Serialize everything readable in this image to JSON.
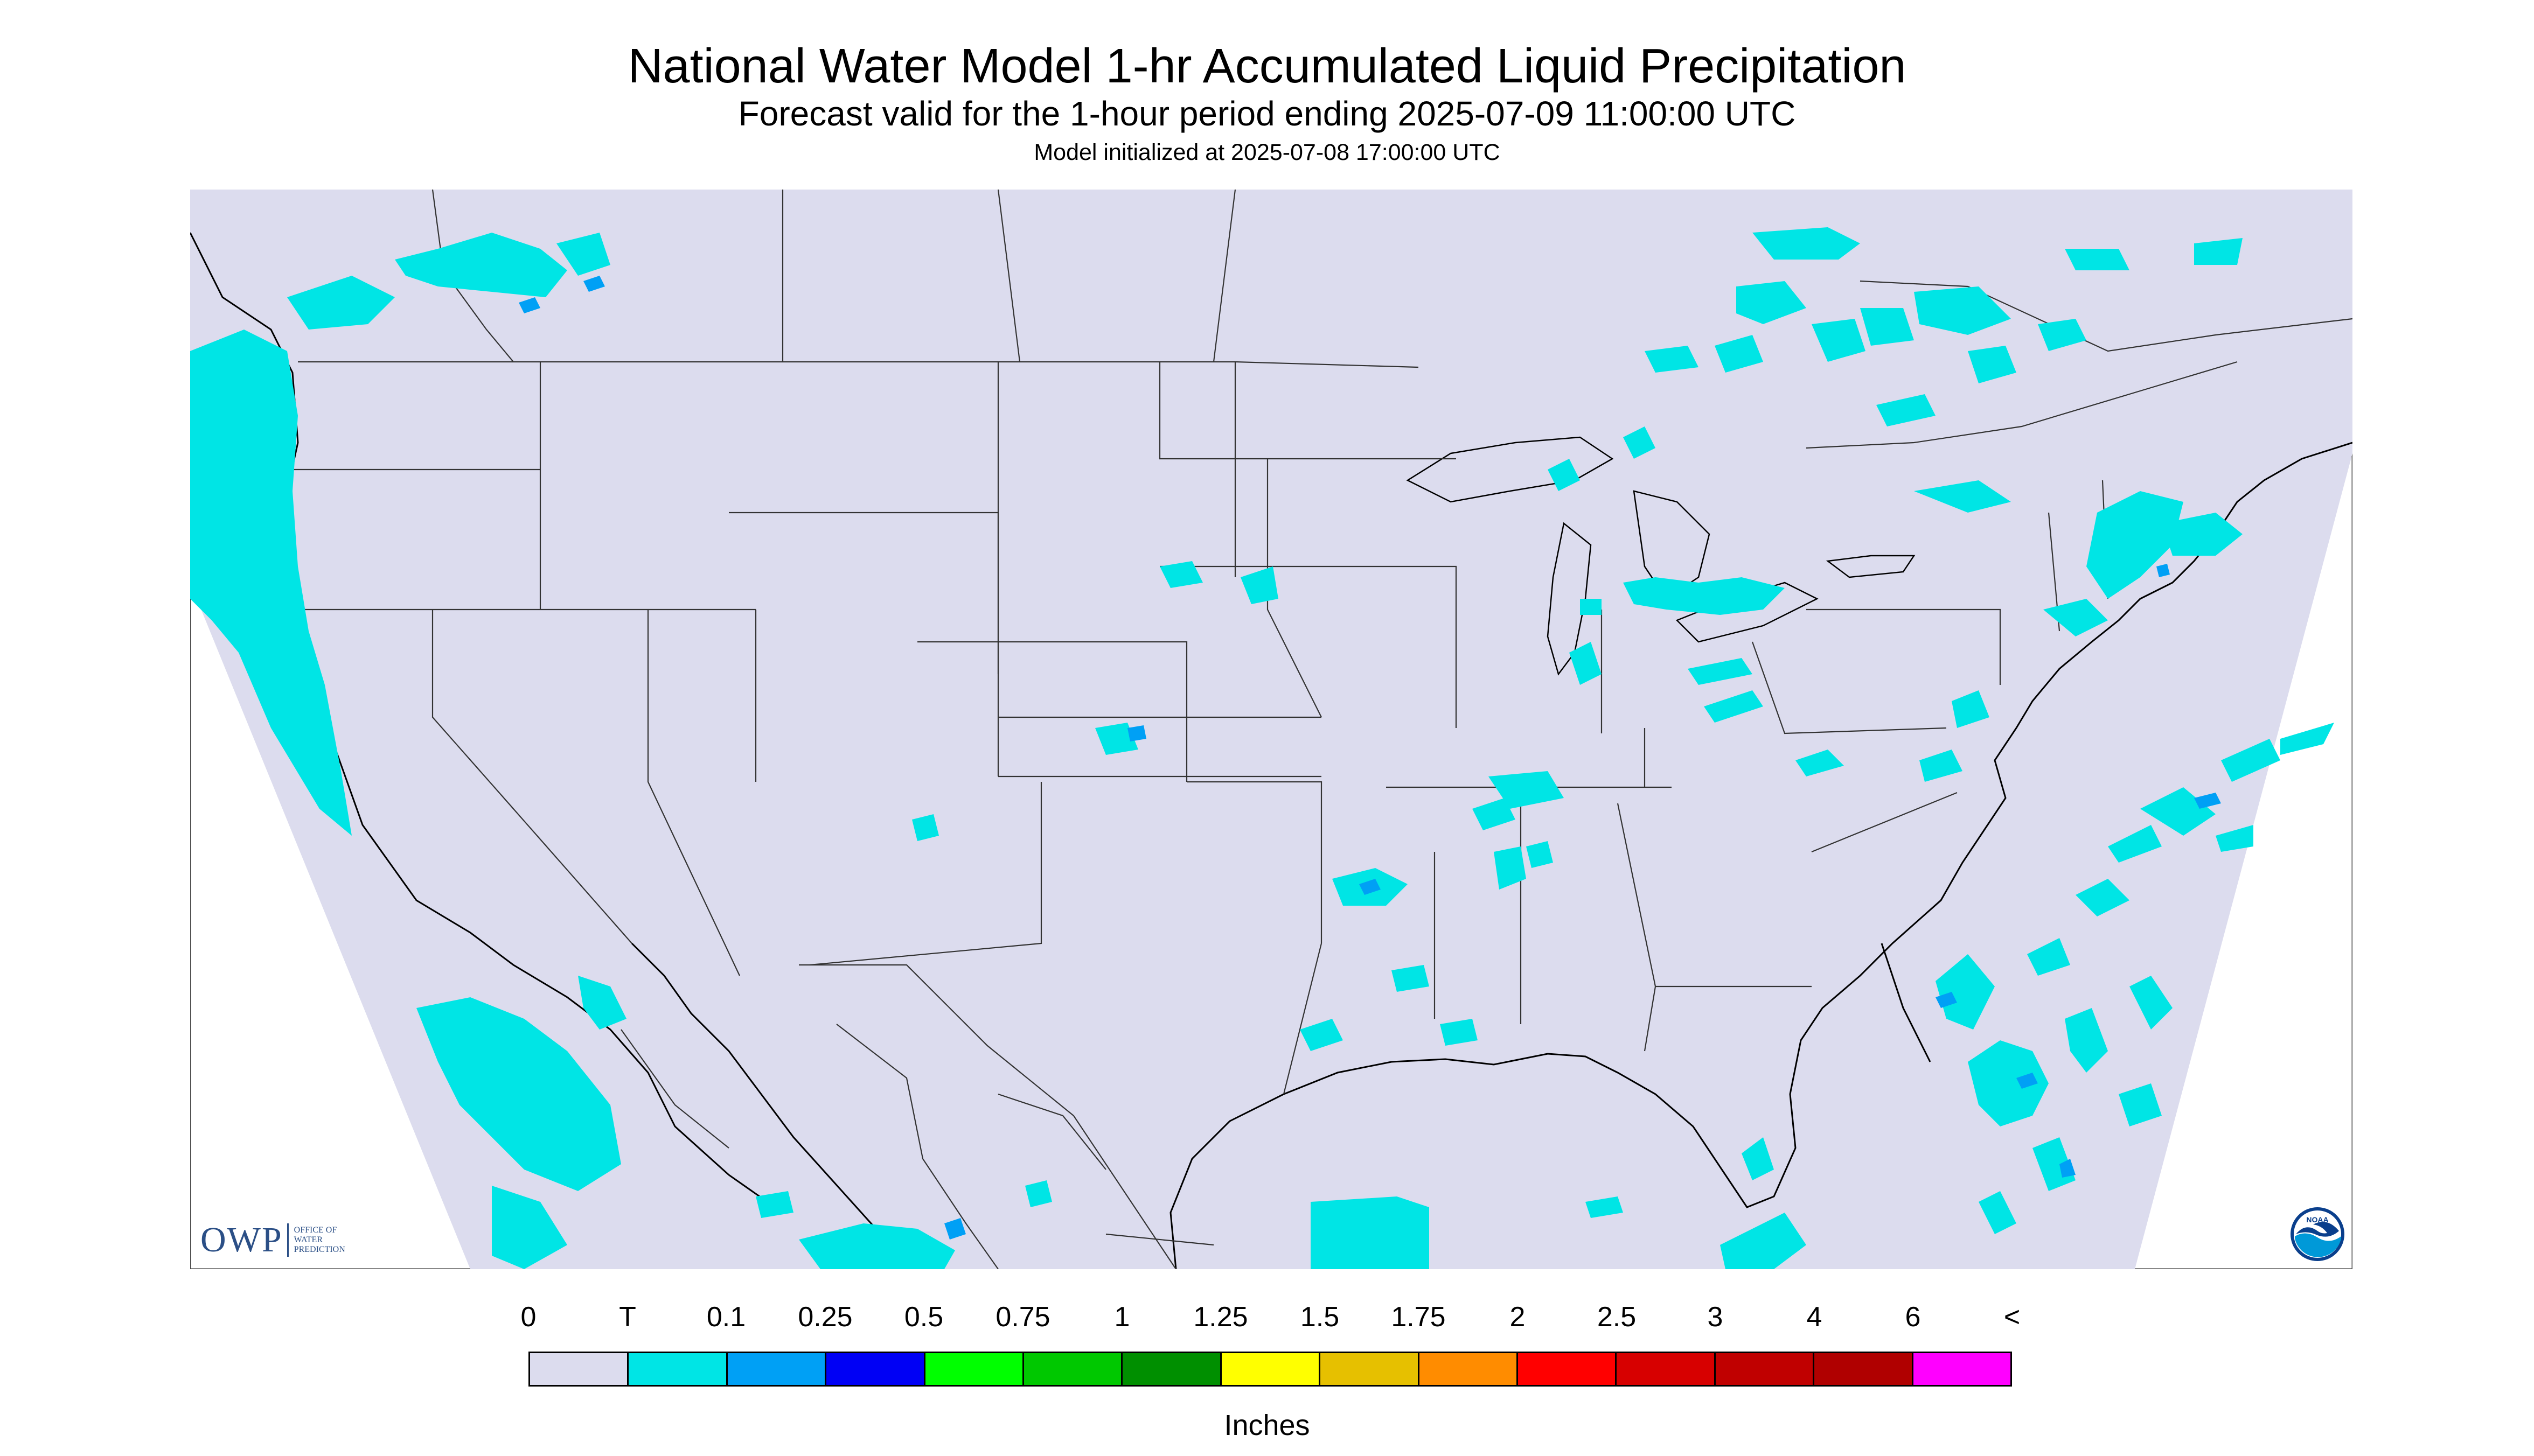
{
  "header": {
    "title": "National Water Model 1-hr Accumulated Liquid Precipitation",
    "subtitle": "Forecast valid for the 1-hour period ending 2025-07-09 11:00:00 UTC",
    "init_line": "Model initialized at 2025-07-08 17:00:00 UTC"
  },
  "map": {
    "region": "Continental United States and surrounding areas",
    "projection": "Lambert conformal",
    "background_color": "#dcdcee",
    "border_color": "#333333",
    "coast_color": "#000000"
  },
  "legend": {
    "tick_labels": [
      "0",
      "T",
      "0.1",
      "0.25",
      "0.5",
      "0.75",
      "1",
      "1.25",
      "1.5",
      "1.75",
      "2",
      "2.5",
      "3",
      "4",
      "6",
      "<"
    ],
    "colors": [
      "#dcdcee",
      "#00e5e5",
      "#00a0f5",
      "#0000f5",
      "#00ff00",
      "#00c800",
      "#008f00",
      "#ffff00",
      "#e6c000",
      "#ff8c00",
      "#ff0000",
      "#d70000",
      "#c00000",
      "#b00000",
      "#ff00ff",
      "#9955c9"
    ],
    "units": "Inches"
  },
  "logos": {
    "owp_mark": "OWP",
    "owp_text": [
      "OFFICE OF",
      "WATER",
      "PREDICTION"
    ],
    "noaa_text": "NOAA"
  }
}
